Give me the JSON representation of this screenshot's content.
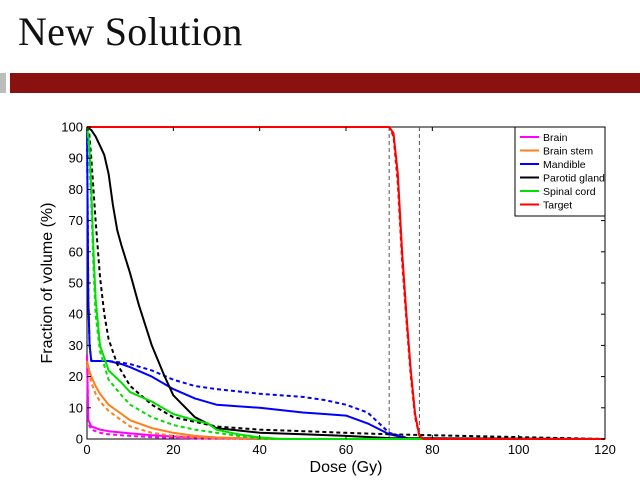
{
  "slide": {
    "title": "New Solution"
  },
  "colors": {
    "accent_bar": "#8b1111",
    "brain": "#ff00ff",
    "brain_stem": "#ff7f1e",
    "mandible": "#0000ff",
    "parotid_gland": "#000000",
    "spinal_cord": "#00e000",
    "target": "#ff0000"
  },
  "chart_data": {
    "type": "line",
    "title": "",
    "xlabel": "Dose (Gy)",
    "ylabel": "Fraction of volume (%)",
    "xlim": [
      0,
      120
    ],
    "ylim": [
      0,
      100
    ],
    "xticks": [
      "0",
      "20",
      "40",
      "60",
      "80",
      "100",
      "120"
    ],
    "yticks": [
      "0",
      "10",
      "20",
      "30",
      "40",
      "50",
      "60",
      "70",
      "80",
      "90",
      "100"
    ],
    "grid": false,
    "legend_position": "top-right",
    "legend": [
      "Brain",
      "Brain stem",
      "Mandible",
      "Parotid gland",
      "Spinal cord",
      "Target"
    ],
    "vertical_reference_lines": [
      70,
      77
    ],
    "series": [
      {
        "name": "Brain",
        "color": "#ff00ff",
        "style": "solid",
        "x": [
          0,
          0.3,
          1,
          3,
          5,
          10,
          15,
          20,
          25,
          30,
          40,
          120
        ],
        "y": [
          27,
          6,
          4,
          3,
          2.5,
          1.8,
          1.2,
          0.8,
          0.5,
          0.3,
          0,
          0
        ]
      },
      {
        "name": "Brain",
        "color": "#ff00ff",
        "style": "dashed",
        "x": [
          0,
          0.3,
          1,
          3,
          5,
          10,
          15,
          20,
          25,
          30,
          40,
          120
        ],
        "y": [
          27,
          5,
          3,
          2,
          1.5,
          1,
          0.6,
          0.4,
          0.2,
          0.1,
          0,
          0
        ]
      },
      {
        "name": "Brain stem",
        "color": "#ff7f1e",
        "style": "solid",
        "x": [
          0,
          0.5,
          1,
          2,
          3,
          5,
          8,
          10,
          15,
          20,
          25,
          30,
          40,
          50,
          120
        ],
        "y": [
          25,
          22,
          20,
          17,
          14.5,
          11,
          8,
          6,
          3.5,
          2,
          1,
          0.5,
          0.1,
          0,
          0
        ]
      },
      {
        "name": "Brain stem",
        "color": "#ff7f1e",
        "style": "dashed",
        "x": [
          0,
          0.5,
          1,
          2,
          3,
          5,
          8,
          10,
          15,
          20,
          25,
          30,
          40,
          120
        ],
        "y": [
          24,
          21,
          18,
          14.5,
          12,
          9,
          6,
          4,
          2,
          1,
          0.5,
          0.2,
          0,
          0
        ]
      },
      {
        "name": "Mandible",
        "color": "#0000ff",
        "style": "solid",
        "x": [
          0,
          0.3,
          0.6,
          1,
          3,
          5,
          8,
          10,
          15,
          20,
          25,
          30,
          40,
          50,
          55,
          60,
          65,
          70,
          75,
          120
        ],
        "y": [
          100,
          45,
          30,
          25,
          25,
          25,
          24,
          23,
          20,
          16,
          13,
          11,
          10,
          8.5,
          8,
          7.5,
          5,
          1.5,
          0,
          0
        ]
      },
      {
        "name": "Mandible",
        "color": "#0000ff",
        "style": "dashed",
        "x": [
          0,
          0.3,
          0.6,
          1,
          3,
          5,
          8,
          10,
          15,
          20,
          25,
          30,
          40,
          50,
          55,
          60,
          65,
          70,
          75,
          120
        ],
        "y": [
          100,
          45,
          30,
          25,
          25,
          25,
          24.5,
          24,
          22,
          19,
          17,
          16,
          14.5,
          13.5,
          12.5,
          11,
          8.5,
          2,
          0,
          0
        ]
      },
      {
        "name": "Parotid gland",
        "color": "#000000",
        "style": "solid",
        "x": [
          0,
          1,
          2,
          3,
          4,
          5,
          6,
          7,
          8,
          10,
          12,
          15,
          18,
          20,
          25,
          30,
          40,
          50,
          60,
          70,
          120
        ],
        "y": [
          100,
          99,
          97,
          94,
          91,
          85,
          75,
          67,
          62,
          53,
          43,
          30,
          20,
          14,
          7,
          3.5,
          2,
          1.5,
          1,
          0.3,
          0
        ]
      },
      {
        "name": "Parotid gland",
        "color": "#000000",
        "style": "dashed",
        "x": [
          0,
          0.5,
          1,
          2,
          3,
          4,
          5,
          7,
          10,
          15,
          20,
          30,
          40,
          50,
          60,
          70,
          120
        ],
        "y": [
          100,
          98,
          90,
          70,
          52,
          40,
          32,
          24,
          17,
          11,
          7,
          4,
          3,
          2.5,
          2,
          1.5,
          0
        ]
      },
      {
        "name": "Spinal cord",
        "color": "#00e000",
        "style": "solid",
        "x": [
          0,
          0.5,
          1,
          1.5,
          2,
          3,
          5,
          8,
          10,
          15,
          20,
          25,
          28,
          30,
          35,
          40,
          45,
          120
        ],
        "y": [
          100,
          95,
          80,
          60,
          45,
          30,
          22,
          18,
          15,
          12,
          8,
          6,
          5,
          3,
          1.5,
          0.5,
          0,
          0
        ]
      },
      {
        "name": "Spinal cord",
        "color": "#00e000",
        "style": "dashed",
        "x": [
          0,
          0.5,
          1,
          1.5,
          2,
          3,
          5,
          8,
          10,
          15,
          20,
          25,
          30,
          35,
          40,
          120
        ],
        "y": [
          100,
          92,
          75,
          55,
          40,
          28,
          19,
          14,
          11,
          7,
          4.5,
          3,
          2,
          1,
          0,
          0
        ]
      },
      {
        "name": "Target",
        "color": "#ff0000",
        "style": "solid",
        "x": [
          0,
          70,
          71,
          72,
          73,
          74,
          75,
          76,
          77,
          78,
          120
        ],
        "y": [
          100,
          100,
          98,
          85,
          60,
          40,
          22,
          8,
          1,
          0,
          0
        ]
      },
      {
        "name": "Target",
        "color": "#ff0000",
        "style": "dashed",
        "x": [
          0,
          70,
          71,
          72,
          73,
          74,
          75,
          76,
          77,
          78,
          120
        ],
        "y": [
          100,
          100,
          97,
          82,
          57,
          38,
          20,
          7,
          1,
          0,
          0
        ]
      }
    ]
  }
}
